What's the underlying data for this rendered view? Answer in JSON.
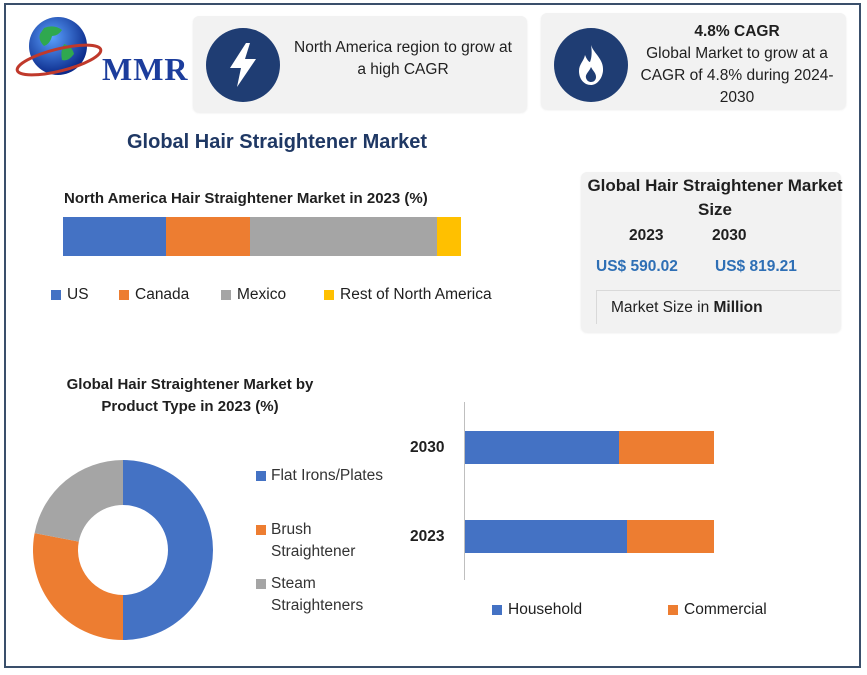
{
  "brand": {
    "logo_text": "MMR"
  },
  "highlights": [
    {
      "icon": "lightning-bolt-icon",
      "title": "",
      "text": "North America region to grow at a high CAGR"
    },
    {
      "icon": "flame-icon",
      "title": "4.8% CAGR",
      "text": "Global Market to grow at a CAGR of 4.8% during 2024-2030"
    }
  ],
  "main_title": "Global Hair Straightener Market",
  "market_size": {
    "title": "Global Hair Straightener Market Size",
    "years": [
      "2023",
      "2030"
    ],
    "values": [
      "US$ 590.02",
      "US$ 819.21"
    ],
    "unit_prefix": "Market Size in ",
    "unit_bold": "Million"
  },
  "colors": {
    "blue": "#4472c4",
    "orange": "#ed7d31",
    "gray": "#a5a5a5",
    "yellow": "#ffc000",
    "icon_bg": "#1f3d73",
    "title": "#1f3864",
    "value": "#2e6fb5"
  },
  "chart_data": [
    {
      "type": "bar",
      "orientation": "horizontal-stacked-100",
      "title": "North America Hair Straightener Market in 2023 (%)",
      "series": [
        {
          "name": "US",
          "values": [
            26
          ]
        },
        {
          "name": "Canada",
          "values": [
            21
          ]
        },
        {
          "name": "Mexico",
          "values": [
            47
          ]
        },
        {
          "name": "Rest of North America",
          "values": [
            6
          ]
        }
      ],
      "legend": "bottom"
    },
    {
      "type": "pie",
      "variant": "donut",
      "title": "Global Hair Straightener Market by Product Type in 2023 (%)",
      "labels": [
        "Flat Irons/Plates",
        "Brush Straightener",
        "Steam Straighteners"
      ],
      "values": [
        50,
        28,
        22
      ],
      "legend": "right"
    },
    {
      "type": "bar",
      "orientation": "horizontal-stacked",
      "categories": [
        "2030",
        "2023"
      ],
      "series": [
        {
          "name": "Household",
          "values": [
            62,
            65
          ]
        },
        {
          "name": "Commercial",
          "values": [
            38,
            35
          ]
        }
      ],
      "legend": "bottom"
    }
  ]
}
